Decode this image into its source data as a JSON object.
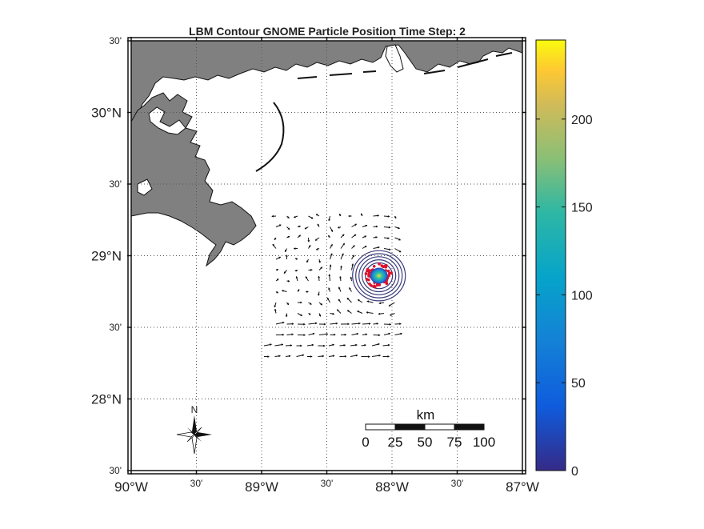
{
  "map": {
    "title": "LBM Contour GNOME Particle Position Time Step: 2",
    "lon_range": [
      -90,
      -87
    ],
    "lat_range": [
      27.5,
      30.5
    ],
    "x_ticks": [
      {
        "lon": -90.0,
        "label": "90°W",
        "major": true
      },
      {
        "lon": -89.5,
        "label": "30'",
        "major": false
      },
      {
        "lon": -89.0,
        "label": "89°W",
        "major": true
      },
      {
        "lon": -88.5,
        "label": "30'",
        "major": false
      },
      {
        "lon": -88.0,
        "label": "88°W",
        "major": true
      },
      {
        "lon": -87.5,
        "label": "30'",
        "major": false
      },
      {
        "lon": -87.0,
        "label": "87°W",
        "major": true
      }
    ],
    "y_ticks": [
      {
        "lat": 30.5,
        "label": "30'",
        "major": false
      },
      {
        "lat": 30.0,
        "label": "30°N",
        "major": true
      },
      {
        "lat": 29.5,
        "label": "30'",
        "major": false
      },
      {
        "lat": 29.0,
        "label": "29°N",
        "major": true
      },
      {
        "lat": 28.5,
        "label": "30'",
        "major": false
      },
      {
        "lat": 28.0,
        "label": "28°N",
        "major": true
      },
      {
        "lat": 27.5,
        "label": "30'",
        "major": false
      }
    ],
    "land_color": "#808080",
    "grid": true,
    "contour_center": {
      "lon": -88.1,
      "lat": 28.86
    },
    "particle_color": "#e0102a",
    "contour_color": "#3a3a7a"
  },
  "colorbar": {
    "range": [
      0,
      245
    ],
    "ticks": [
      {
        "value": 0,
        "label": "0"
      },
      {
        "value": 50,
        "label": "50"
      },
      {
        "value": 100,
        "label": "100"
      },
      {
        "value": 150,
        "label": "150"
      },
      {
        "value": 200,
        "label": "200"
      }
    ],
    "colormap": "parula"
  },
  "scalebar": {
    "unit": "km",
    "labels": [
      "0",
      "25",
      "50",
      "75",
      "100"
    ]
  },
  "compass": {
    "label": "N"
  }
}
